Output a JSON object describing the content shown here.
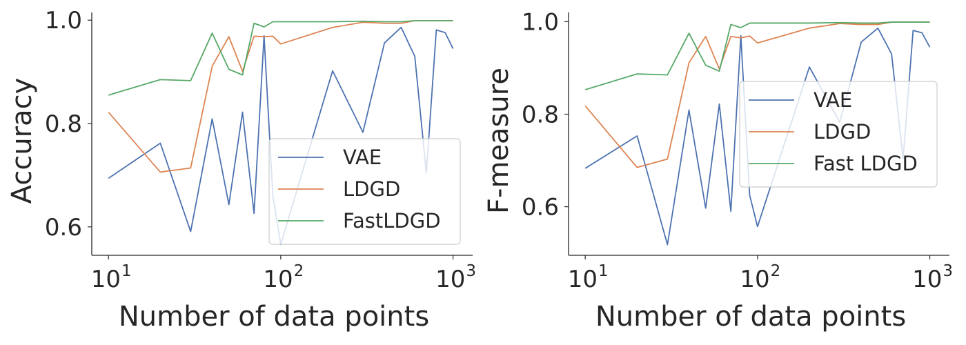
{
  "chart_data": [
    {
      "type": "line",
      "xscale": "log",
      "xlabel": "Number of data points",
      "ylabel": "Accuracy",
      "xlim": [
        8,
        1300
      ],
      "ylim": [
        0.545,
        1.015
      ],
      "xticks": [
        10,
        100,
        1000
      ],
      "xtick_labels": [
        {
          "base": "10",
          "exp": "1"
        },
        {
          "base": "10",
          "exp": "2"
        },
        {
          "base": "10",
          "exp": "3"
        }
      ],
      "yticks": [
        0.6,
        0.8,
        1.0
      ],
      "ytick_labels": [
        "0.6",
        "0.8",
        "1.0"
      ],
      "legend_position": "lower-right",
      "grid": false,
      "x": [
        10,
        20,
        30,
        40,
        50,
        60,
        70,
        80,
        90,
        100,
        200,
        300,
        400,
        500,
        600,
        700,
        800,
        900,
        1000
      ],
      "series": [
        {
          "name": "VAE",
          "color": "#4c72b0",
          "values": [
            0.694,
            0.762,
            0.591,
            0.809,
            0.643,
            0.822,
            0.626,
            0.97,
            0.66,
            0.566,
            0.902,
            0.783,
            0.956,
            0.986,
            0.93,
            0.704,
            0.981,
            0.976,
            0.945
          ]
        },
        {
          "name": "LDGD",
          "color": "#dd8452",
          "values": [
            0.822,
            0.706,
            0.714,
            0.911,
            0.968,
            0.901,
            0.969,
            0.968,
            0.969,
            0.954,
            0.986,
            0.996,
            0.994,
            0.994,
            0.999,
            0.999,
            0.999,
            0.999,
            0.999
          ]
        },
        {
          "name": "FastLDGD",
          "color": "#55a868",
          "values": [
            0.855,
            0.885,
            0.883,
            0.975,
            0.905,
            0.894,
            0.994,
            0.987,
            0.997,
            0.997,
            0.997,
            0.998,
            0.997,
            0.997,
            0.999,
            0.999,
            0.999,
            0.999,
            0.999
          ]
        }
      ]
    },
    {
      "type": "line",
      "xscale": "log",
      "xlabel": "Number of data points",
      "ylabel": "F-measure",
      "xlim": [
        8,
        1300
      ],
      "ylim": [
        0.495,
        1.02
      ],
      "xticks": [
        10,
        100,
        1000
      ],
      "xtick_labels": [
        {
          "base": "10",
          "exp": "1"
        },
        {
          "base": "10",
          "exp": "2"
        },
        {
          "base": "10",
          "exp": "3"
        }
      ],
      "yticks": [
        0.6,
        0.8,
        1.0
      ],
      "ytick_labels": [
        "0.6",
        "0.8",
        "1.0"
      ],
      "legend_position": "center-right",
      "grid": false,
      "x": [
        10,
        20,
        30,
        40,
        50,
        60,
        70,
        80,
        90,
        100,
        200,
        300,
        400,
        500,
        600,
        700,
        800,
        900,
        1000
      ],
      "series": [
        {
          "name": "VAE",
          "color": "#4c72b0",
          "values": [
            0.683,
            0.753,
            0.518,
            0.809,
            0.597,
            0.822,
            0.59,
            0.97,
            0.625,
            0.557,
            0.902,
            0.783,
            0.956,
            0.986,
            0.93,
            0.704,
            0.981,
            0.976,
            0.945
          ]
        },
        {
          "name": "LDGD",
          "color": "#dd8452",
          "values": [
            0.818,
            0.685,
            0.703,
            0.911,
            0.968,
            0.898,
            0.968,
            0.965,
            0.969,
            0.954,
            0.986,
            0.996,
            0.994,
            0.994,
            0.999,
            0.999,
            0.999,
            0.999,
            0.999
          ]
        },
        {
          "name": "Fast LDGD",
          "color": "#55a868",
          "values": [
            0.853,
            0.887,
            0.885,
            0.975,
            0.906,
            0.893,
            0.994,
            0.987,
            0.997,
            0.997,
            0.997,
            0.998,
            0.997,
            0.997,
            0.999,
            0.999,
            0.999,
            0.999,
            0.999
          ]
        }
      ]
    }
  ]
}
